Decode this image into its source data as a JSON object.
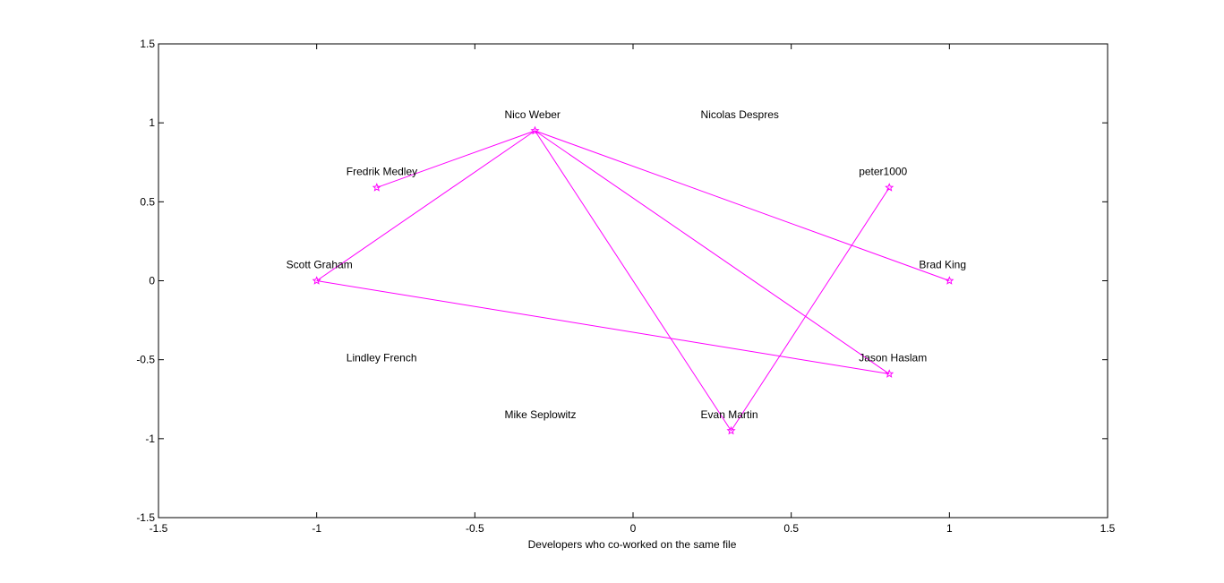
{
  "chart_data": {
    "type": "scatter",
    "title": "",
    "xlabel": "Developers who co-worked on the same file",
    "ylabel": "",
    "xlim": [
      -1.5,
      1.5
    ],
    "ylim": [
      -1.5,
      1.5
    ],
    "xticks": [
      -1.5,
      -1,
      -0.5,
      0,
      0.5,
      1,
      1.5
    ],
    "xtick_labels": [
      "-1.5",
      "-1",
      "-0.5",
      "0",
      "0.5",
      "1",
      "1.5"
    ],
    "yticks": [
      -1.5,
      -1,
      -0.5,
      0,
      0.5,
      1,
      1.5
    ],
    "ytick_labels": [
      "-1.5",
      "-1",
      "-0.5",
      "0",
      "0.5",
      "1",
      "1.5"
    ],
    "grid": false,
    "line_color": "#ff00ff",
    "nodes": [
      {
        "name": "Nico Weber",
        "x": -0.31,
        "y": 0.95,
        "marked": true
      },
      {
        "name": "Nicolas Despres",
        "x": 0.31,
        "y": 0.95,
        "marked": false
      },
      {
        "name": "Fredrik Medley",
        "x": -0.81,
        "y": 0.59,
        "marked": true
      },
      {
        "name": "peter1000",
        "x": 0.81,
        "y": 0.59,
        "marked": true
      },
      {
        "name": "Scott Graham",
        "x": -1.0,
        "y": 0.0,
        "marked": true
      },
      {
        "name": "Brad King",
        "x": 1.0,
        "y": 0.0,
        "marked": true
      },
      {
        "name": "Lindley French",
        "x": -0.81,
        "y": -0.59,
        "marked": false
      },
      {
        "name": "Jason Haslam",
        "x": 0.81,
        "y": -0.59,
        "marked": true
      },
      {
        "name": "Mike Seplowitz",
        "x": -0.31,
        "y": -0.95,
        "marked": false
      },
      {
        "name": "Evan Martin",
        "x": 0.31,
        "y": -0.95,
        "marked": true
      }
    ],
    "edges": [
      [
        "Nico Weber",
        "Fredrik Medley"
      ],
      [
        "Nico Weber",
        "Scott Graham"
      ],
      [
        "Nico Weber",
        "Evan Martin"
      ],
      [
        "Nico Weber",
        "Jason Haslam"
      ],
      [
        "Nico Weber",
        "Brad King"
      ],
      [
        "Scott Graham",
        "Jason Haslam"
      ],
      [
        "Evan Martin",
        "peter1000"
      ]
    ]
  }
}
